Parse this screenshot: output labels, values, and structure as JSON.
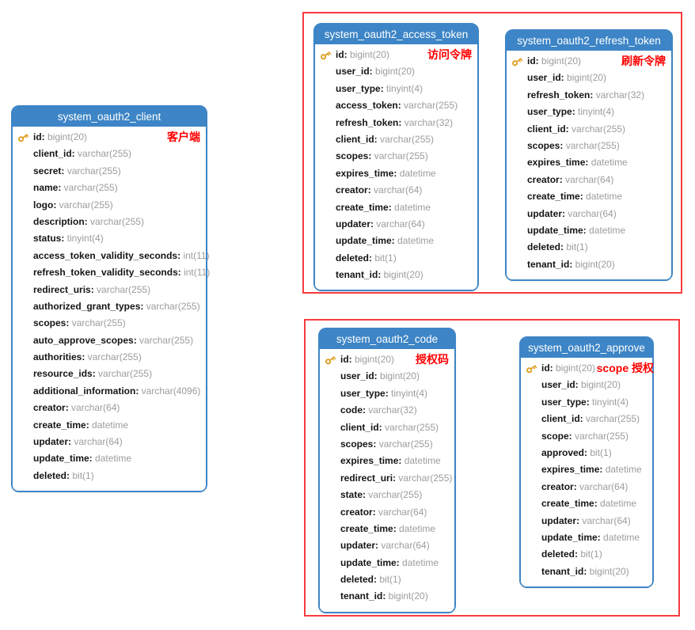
{
  "colors": {
    "header_blue": "#3d85c6",
    "border_blue": "#3d85c6",
    "group_red": "#f83b40",
    "annotation_red": "#fe0000",
    "key_gold": "#dfa32b",
    "field_name": "#151515",
    "field_type": "#9c9c9c"
  },
  "diagram": {
    "tables": [
      {
        "title": "system_oauth2_client",
        "annotation": "客户端",
        "fields": [
          {
            "name": "id",
            "type": "bigint(20)",
            "pk": true
          },
          {
            "name": "client_id",
            "type": "varchar(255)"
          },
          {
            "name": "secret",
            "type": "varchar(255)"
          },
          {
            "name": "name",
            "type": "varchar(255)"
          },
          {
            "name": "logo",
            "type": "varchar(255)"
          },
          {
            "name": "description",
            "type": "varchar(255)"
          },
          {
            "name": "status",
            "type": "tinyint(4)"
          },
          {
            "name": "access_token_validity_seconds",
            "type": "int(11)"
          },
          {
            "name": "refresh_token_validity_seconds",
            "type": "int(11)"
          },
          {
            "name": "redirect_uris",
            "type": "varchar(255)"
          },
          {
            "name": "authorized_grant_types",
            "type": "varchar(255)"
          },
          {
            "name": "scopes",
            "type": "varchar(255)"
          },
          {
            "name": "auto_approve_scopes",
            "type": "varchar(255)"
          },
          {
            "name": "authorities",
            "type": "varchar(255)"
          },
          {
            "name": "resource_ids",
            "type": "varchar(255)"
          },
          {
            "name": "additional_information",
            "type": "varchar(4096)"
          },
          {
            "name": "creator",
            "type": "varchar(64)"
          },
          {
            "name": "create_time",
            "type": "datetime"
          },
          {
            "name": "updater",
            "type": "varchar(64)"
          },
          {
            "name": "update_time",
            "type": "datetime"
          },
          {
            "name": "deleted",
            "type": "bit(1)"
          }
        ]
      },
      {
        "title": "system_oauth2_access_token",
        "annotation": "访问令牌",
        "fields": [
          {
            "name": "id",
            "type": "bigint(20)",
            "pk": true
          },
          {
            "name": "user_id",
            "type": "bigint(20)"
          },
          {
            "name": "user_type",
            "type": "tinyint(4)"
          },
          {
            "name": "access_token",
            "type": "varchar(255)"
          },
          {
            "name": "refresh_token",
            "type": "varchar(32)"
          },
          {
            "name": "client_id",
            "type": "varchar(255)"
          },
          {
            "name": "scopes",
            "type": "varchar(255)"
          },
          {
            "name": "expires_time",
            "type": "datetime"
          },
          {
            "name": "creator",
            "type": "varchar(64)"
          },
          {
            "name": "create_time",
            "type": "datetime"
          },
          {
            "name": "updater",
            "type": "varchar(64)"
          },
          {
            "name": "update_time",
            "type": "datetime"
          },
          {
            "name": "deleted",
            "type": "bit(1)"
          },
          {
            "name": "tenant_id",
            "type": "bigint(20)"
          }
        ]
      },
      {
        "title": "system_oauth2_refresh_token",
        "annotation": "刷新令牌",
        "fields": [
          {
            "name": "id",
            "type": "bigint(20)",
            "pk": true
          },
          {
            "name": "user_id",
            "type": "bigint(20)"
          },
          {
            "name": "refresh_token",
            "type": "varchar(32)"
          },
          {
            "name": "user_type",
            "type": "tinyint(4)"
          },
          {
            "name": "client_id",
            "type": "varchar(255)"
          },
          {
            "name": "scopes",
            "type": "varchar(255)"
          },
          {
            "name": "expires_time",
            "type": "datetime"
          },
          {
            "name": "creator",
            "type": "varchar(64)"
          },
          {
            "name": "create_time",
            "type": "datetime"
          },
          {
            "name": "updater",
            "type": "varchar(64)"
          },
          {
            "name": "update_time",
            "type": "datetime"
          },
          {
            "name": "deleted",
            "type": "bit(1)"
          },
          {
            "name": "tenant_id",
            "type": "bigint(20)"
          }
        ]
      },
      {
        "title": "system_oauth2_code",
        "annotation": "授权码",
        "fields": [
          {
            "name": "id",
            "type": "bigint(20)",
            "pk": true
          },
          {
            "name": "user_id",
            "type": "bigint(20)"
          },
          {
            "name": "user_type",
            "type": "tinyint(4)"
          },
          {
            "name": "code",
            "type": "varchar(32)"
          },
          {
            "name": "client_id",
            "type": "varchar(255)"
          },
          {
            "name": "scopes",
            "type": "varchar(255)"
          },
          {
            "name": "expires_time",
            "type": "datetime"
          },
          {
            "name": "redirect_uri",
            "type": "varchar(255)"
          },
          {
            "name": "state",
            "type": "varchar(255)"
          },
          {
            "name": "creator",
            "type": "varchar(64)"
          },
          {
            "name": "create_time",
            "type": "datetime"
          },
          {
            "name": "updater",
            "type": "varchar(64)"
          },
          {
            "name": "update_time",
            "type": "datetime"
          },
          {
            "name": "deleted",
            "type": "bit(1)"
          },
          {
            "name": "tenant_id",
            "type": "bigint(20)"
          }
        ]
      },
      {
        "title": "system_oauth2_approve",
        "annotation": "scope 授权",
        "fields": [
          {
            "name": "id",
            "type": "bigint(20)",
            "pk": true
          },
          {
            "name": "user_id",
            "type": "bigint(20)"
          },
          {
            "name": "user_type",
            "type": "tinyint(4)"
          },
          {
            "name": "client_id",
            "type": "varchar(255)"
          },
          {
            "name": "scope",
            "type": "varchar(255)"
          },
          {
            "name": "approved",
            "type": "bit(1)"
          },
          {
            "name": "expires_time",
            "type": "datetime"
          },
          {
            "name": "creator",
            "type": "varchar(64)"
          },
          {
            "name": "create_time",
            "type": "datetime"
          },
          {
            "name": "updater",
            "type": "varchar(64)"
          },
          {
            "name": "update_time",
            "type": "datetime"
          },
          {
            "name": "deleted",
            "type": "bit(1)"
          },
          {
            "name": "tenant_id",
            "type": "bigint(20)"
          }
        ]
      }
    ]
  }
}
